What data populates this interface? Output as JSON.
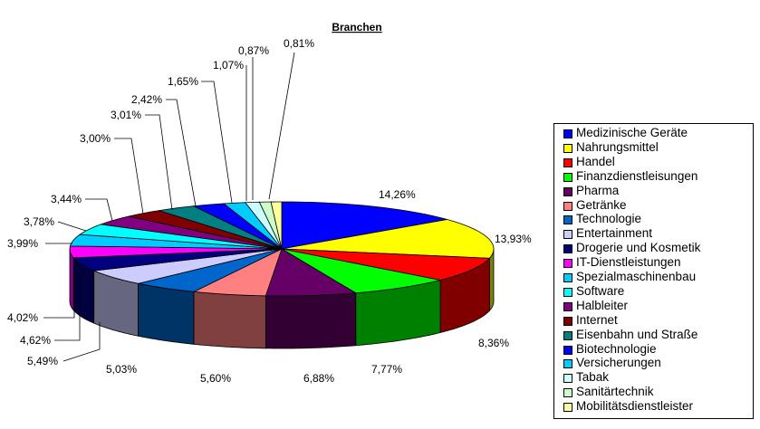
{
  "chart_data": {
    "type": "pie",
    "title": "Branchen",
    "legend_position": "right",
    "slices": [
      {
        "name": "Medizinische Geräte",
        "value": 14.26,
        "label": "14,26%",
        "color": "#0000ff"
      },
      {
        "name": "Nahrungsmittel",
        "value": 13.93,
        "label": "13,93%",
        "color": "#ffff00"
      },
      {
        "name": "Handel",
        "value": 8.36,
        "label": "8,36%",
        "color": "#ff0000"
      },
      {
        "name": "Finanzdienstleisungen",
        "value": 7.77,
        "label": "7,77%",
        "color": "#00ff00"
      },
      {
        "name": "Pharma",
        "value": 6.88,
        "label": "6,88%",
        "color": "#660066"
      },
      {
        "name": "Getränke",
        "value": 5.6,
        "label": "5,60%",
        "color": "#ff8080"
      },
      {
        "name": "Technologie",
        "value": 5.03,
        "label": "5,03%",
        "color": "#0066cc"
      },
      {
        "name": "Entertainment",
        "value": 5.49,
        "label": "5,49%",
        "color": "#ccccff"
      },
      {
        "name": "Drogerie und Kosmetik",
        "value": 4.62,
        "label": "4,62%",
        "color": "#000080"
      },
      {
        "name": "IT-Dienstleistungen",
        "value": 4.02,
        "label": "4,02%",
        "color": "#ff00ff"
      },
      {
        "name": "Spezialmaschinenbau",
        "value": 3.99,
        "label": "3,99%",
        "color": "#00ccff"
      },
      {
        "name": "Software",
        "value": 3.78,
        "label": "3,78%",
        "color": "#00ffff"
      },
      {
        "name": "Halbleiter",
        "value": 3.44,
        "label": "3,44%",
        "color": "#800080"
      },
      {
        "name": "Internet",
        "value": 3.0,
        "label": "3,00%",
        "color": "#800000"
      },
      {
        "name": "Eisenbahn und Straße",
        "value": 3.01,
        "label": "3,01%",
        "color": "#008080"
      },
      {
        "name": "Biotechnologie",
        "value": 2.42,
        "label": "2,42%",
        "color": "#0000ff"
      },
      {
        "name": "Versicherungen",
        "value": 1.65,
        "label": "1,65%",
        "color": "#00ccff"
      },
      {
        "name": "Tabak",
        "value": 1.07,
        "label": "1,07%",
        "color": "#ccffff"
      },
      {
        "name": "Sanitärtechnik",
        "value": 0.87,
        "label": "0,87%",
        "color": "#ccffcc"
      },
      {
        "name": "Mobilitätsdienstleister",
        "value": 0.81,
        "label": "0,81%",
        "color": "#ffff99"
      }
    ]
  }
}
